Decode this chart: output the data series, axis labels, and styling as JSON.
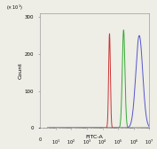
{
  "title": "",
  "xlabel": "FITC-A",
  "ylabel": "Count",
  "ylim": [
    0,
    310
  ],
  "xlim_log": [
    0,
    10000000.0
  ],
  "yticks": [
    0,
    100,
    200,
    300
  ],
  "ytick_labels": [
    "0",
    "100",
    "200",
    "300"
  ],
  "background_color": "#eeede6",
  "plot_bg": "#eeede6",
  "red_peak_log": 4.45,
  "red_sigma_log": 0.055,
  "red_height": 255,
  "green_peak_log": 5.35,
  "green_sigma_log": 0.085,
  "green_height": 265,
  "blue_peak_log": 6.35,
  "blue_sigma_log": 0.22,
  "blue_height": 250,
  "red_color": "#cc3333",
  "green_color": "#33aa33",
  "blue_color": "#5555cc",
  "linewidth": 0.7,
  "spine_color": "#888888",
  "tick_fontsize": 4.0,
  "label_fontsize": 4.5,
  "ylabel_label": "Count",
  "top_label": "(x 10¹)",
  "xticks": [
    10,
    100,
    1000,
    10000,
    100000,
    1000000,
    10000000
  ],
  "xtick_labels": [
    "10¹",
    "10²",
    "10³",
    "10⁴",
    "10⁵",
    "10⁶",
    "10⁷"
  ]
}
